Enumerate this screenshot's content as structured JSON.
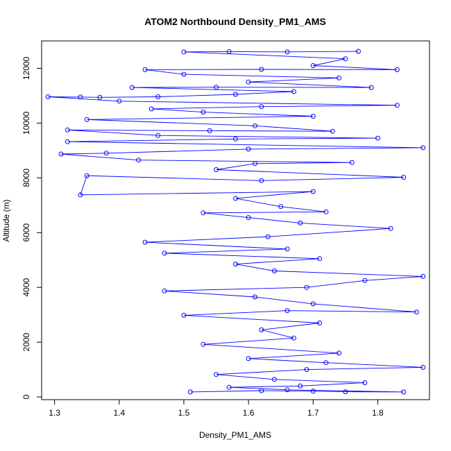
{
  "chart_data": {
    "type": "scatter",
    "style": "points-connected-by-lines",
    "title": "ATOM2 Northbound Density_PM1_AMS",
    "xlabel": "Density_PM1_AMS",
    "ylabel": "Altitude (m)",
    "xlim": [
      1.28,
      1.88
    ],
    "ylim": [
      -100,
      13000
    ],
    "xticks": [
      "1.3",
      "1.4",
      "1.5",
      "1.6",
      "1.7",
      "1.8"
    ],
    "yticks": [
      "0",
      "2000",
      "4000",
      "6000",
      "8000",
      "10000",
      "12000"
    ],
    "grid": false,
    "series": [
      {
        "name": "Density_PM1_AMS",
        "color": "#0000ff",
        "marker": "open-circle",
        "points": [
          {
            "x": 1.51,
            "y": 180
          },
          {
            "x": 1.62,
            "y": 230
          },
          {
            "x": 1.7,
            "y": 210
          },
          {
            "x": 1.75,
            "y": 190
          },
          {
            "x": 1.84,
            "y": 180
          },
          {
            "x": 1.66,
            "y": 260
          },
          {
            "x": 1.57,
            "y": 350
          },
          {
            "x": 1.68,
            "y": 400
          },
          {
            "x": 1.78,
            "y": 520
          },
          {
            "x": 1.64,
            "y": 640
          },
          {
            "x": 1.55,
            "y": 820
          },
          {
            "x": 1.69,
            "y": 1000
          },
          {
            "x": 1.87,
            "y": 1080
          },
          {
            "x": 1.72,
            "y": 1250
          },
          {
            "x": 1.6,
            "y": 1400
          },
          {
            "x": 1.74,
            "y": 1600
          },
          {
            "x": 1.53,
            "y": 1920
          },
          {
            "x": 1.67,
            "y": 2150
          },
          {
            "x": 1.62,
            "y": 2450
          },
          {
            "x": 1.71,
            "y": 2700
          },
          {
            "x": 1.5,
            "y": 2980
          },
          {
            "x": 1.66,
            "y": 3150
          },
          {
            "x": 1.86,
            "y": 3100
          },
          {
            "x": 1.7,
            "y": 3400
          },
          {
            "x": 1.61,
            "y": 3650
          },
          {
            "x": 1.47,
            "y": 3870
          },
          {
            "x": 1.69,
            "y": 4000
          },
          {
            "x": 1.78,
            "y": 4250
          },
          {
            "x": 1.87,
            "y": 4400
          },
          {
            "x": 1.64,
            "y": 4600
          },
          {
            "x": 1.58,
            "y": 4850
          },
          {
            "x": 1.71,
            "y": 5050
          },
          {
            "x": 1.47,
            "y": 5250
          },
          {
            "x": 1.66,
            "y": 5400
          },
          {
            "x": 1.44,
            "y": 5650
          },
          {
            "x": 1.63,
            "y": 5850
          },
          {
            "x": 1.82,
            "y": 6150
          },
          {
            "x": 1.68,
            "y": 6350
          },
          {
            "x": 1.6,
            "y": 6550
          },
          {
            "x": 1.53,
            "y": 6720
          },
          {
            "x": 1.72,
            "y": 6760
          },
          {
            "x": 1.65,
            "y": 6950
          },
          {
            "x": 1.58,
            "y": 7250
          },
          {
            "x": 1.7,
            "y": 7500
          },
          {
            "x": 1.34,
            "y": 7380
          },
          {
            "x": 1.35,
            "y": 8080
          },
          {
            "x": 1.62,
            "y": 7900
          },
          {
            "x": 1.84,
            "y": 8020
          },
          {
            "x": 1.55,
            "y": 8300
          },
          {
            "x": 1.61,
            "y": 8520
          },
          {
            "x": 1.76,
            "y": 8560
          },
          {
            "x": 1.43,
            "y": 8650
          },
          {
            "x": 1.31,
            "y": 8870
          },
          {
            "x": 1.38,
            "y": 8900
          },
          {
            "x": 1.6,
            "y": 9050
          },
          {
            "x": 1.87,
            "y": 9100
          },
          {
            "x": 1.32,
            "y": 9320
          },
          {
            "x": 1.58,
            "y": 9420
          },
          {
            "x": 1.8,
            "y": 9450
          },
          {
            "x": 1.46,
            "y": 9550
          },
          {
            "x": 1.32,
            "y": 9750
          },
          {
            "x": 1.54,
            "y": 9720
          },
          {
            "x": 1.73,
            "y": 9700
          },
          {
            "x": 1.61,
            "y": 9900
          },
          {
            "x": 1.35,
            "y": 10130
          },
          {
            "x": 1.7,
            "y": 10250
          },
          {
            "x": 1.53,
            "y": 10400
          },
          {
            "x": 1.45,
            "y": 10520
          },
          {
            "x": 1.62,
            "y": 10600
          },
          {
            "x": 1.83,
            "y": 10650
          },
          {
            "x": 1.4,
            "y": 10800
          },
          {
            "x": 1.29,
            "y": 10960
          },
          {
            "x": 1.34,
            "y": 10950
          },
          {
            "x": 1.37,
            "y": 10940
          },
          {
            "x": 1.46,
            "y": 10960
          },
          {
            "x": 1.58,
            "y": 11050
          },
          {
            "x": 1.67,
            "y": 11150
          },
          {
            "x": 1.42,
            "y": 11300
          },
          {
            "x": 1.55,
            "y": 11310
          },
          {
            "x": 1.79,
            "y": 11300
          },
          {
            "x": 1.6,
            "y": 11500
          },
          {
            "x": 1.74,
            "y": 11650
          },
          {
            "x": 1.5,
            "y": 11780
          },
          {
            "x": 1.44,
            "y": 11950
          },
          {
            "x": 1.62,
            "y": 11960
          },
          {
            "x": 1.83,
            "y": 11950
          },
          {
            "x": 1.7,
            "y": 12100
          },
          {
            "x": 1.75,
            "y": 12350
          },
          {
            "x": 1.5,
            "y": 12600
          },
          {
            "x": 1.57,
            "y": 12610
          },
          {
            "x": 1.66,
            "y": 12600
          },
          {
            "x": 1.77,
            "y": 12620
          }
        ]
      }
    ]
  }
}
